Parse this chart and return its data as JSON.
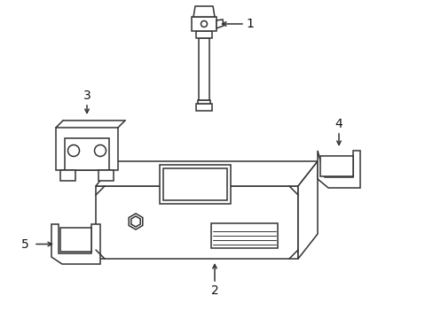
{
  "background_color": "#ffffff",
  "line_color": "#333333",
  "text_color": "#111111",
  "fig_width": 4.89,
  "fig_height": 3.6,
  "dpi": 100
}
